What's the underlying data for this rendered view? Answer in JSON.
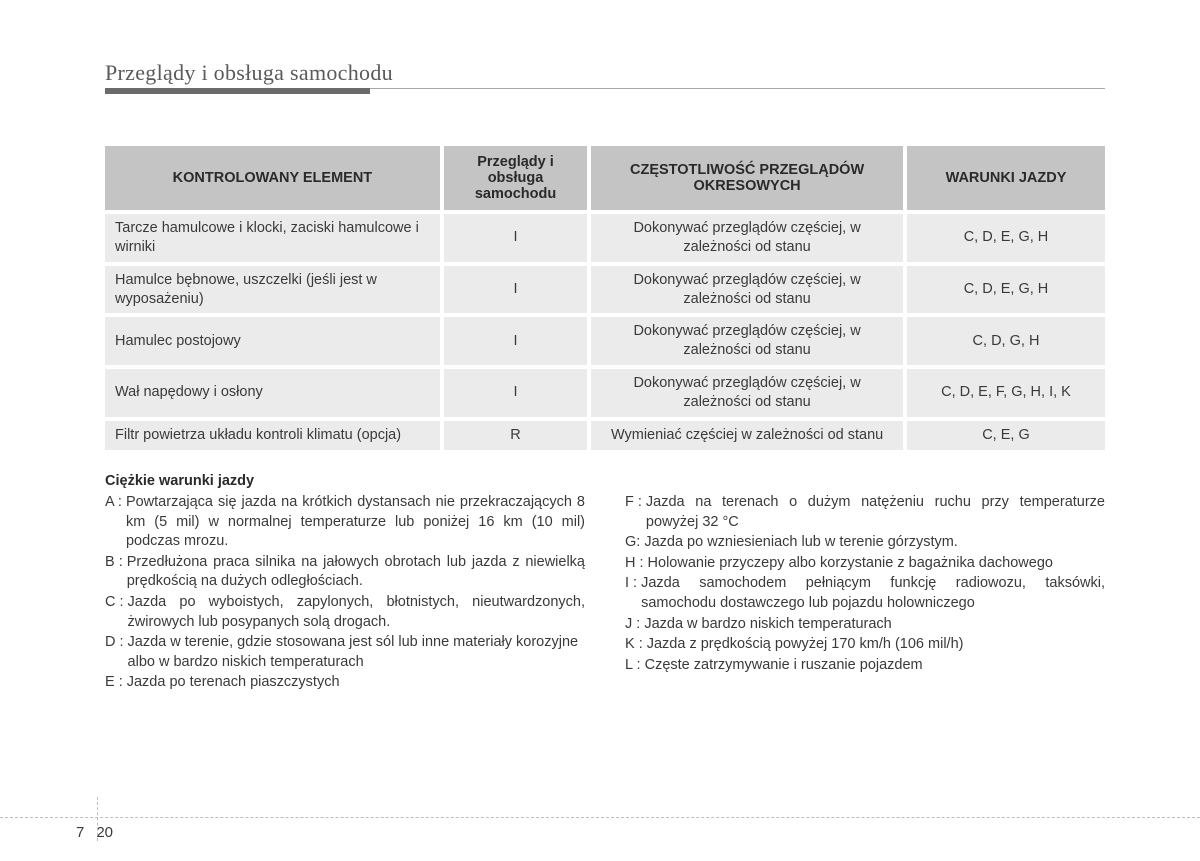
{
  "header": {
    "title": "Przeglądy i obsługa samochodu"
  },
  "table": {
    "headers": {
      "col1": "KONTROLOWANY ELEMENT",
      "col2": "Przeglądy i obsługa samochodu",
      "col3": "CZĘSTOTLIWOŚĆ PRZEGLĄDÓW OKRESOWYCH",
      "col4": "WARUNKI JAZDY"
    },
    "rows": [
      {
        "element": "Tarcze hamulcowe i klocki, zaciski hamulcowe i wirniki",
        "service": "I",
        "frequency": "Dokonywać przeglądów częściej, w zależności od stanu",
        "conditions": "C, D, E, G, H"
      },
      {
        "element": "Hamulce bębnowe, uszczelki (jeśli jest w wyposażeniu)",
        "service": "I",
        "frequency": "Dokonywać przeglądów częściej, w zależności od stanu",
        "conditions": "C, D, E, G, H"
      },
      {
        "element": "Hamulec postojowy",
        "service": "I",
        "frequency": "Dokonywać przeglądów częściej, w zależności od stanu",
        "conditions": "C, D, G, H"
      },
      {
        "element": "Wał napędowy i osłony",
        "service": "I",
        "frequency": "Dokonywać przeglądów częściej, w zależności od stanu",
        "conditions": "C, D, E, F, G, H, I, K"
      },
      {
        "element": "Filtr powietrza układu kontroli klimatu (opcja)",
        "service": "R",
        "frequency": "Wymieniać częściej w zależności od stanu",
        "conditions": "C, E, G"
      }
    ]
  },
  "conditions": {
    "title": "Ciężkie warunki jazdy",
    "left": [
      {
        "label": "A :",
        "text": "Powtarzająca się jazda na krótkich dystansach nie przekraczających 8 km (5 mil) w normalnej temperaturze lub poniżej 16 km (10 mil) podczas mrozu.",
        "justify": true
      },
      {
        "label": "B :",
        "text": "Przedłużona praca silnika na jałowych obrotach lub jazda z niewielką prędkością na dużych odległościach.",
        "justify": true
      },
      {
        "label": "C :",
        "text": "Jazda po wyboistych, zapylonych, błotnistych, nieutwardzonych, żwirowych lub posypanych solą drogach.",
        "justify": true
      },
      {
        "label": "D :",
        "text": "Jazda w terenie, gdzie stosowana jest sól lub inne materiały korozyjne albo w bardzo niskich temperaturach",
        "justify": false
      },
      {
        "label": "E :",
        "text": "Jazda po terenach piaszczystych",
        "justify": false
      }
    ],
    "right": [
      {
        "label": "F :",
        "text": "Jazda na terenach o dużym natężeniu ruchu przy temperaturze powyżej 32 °C",
        "justify": true
      },
      {
        "label": "G:",
        "text": "Jazda po wzniesieniach lub w terenie górzystym.",
        "justify": false
      },
      {
        "label": "H :",
        "text": "Holowanie przyczepy albo korzystanie z bagażnika dachowego",
        "justify": true
      },
      {
        "label": "I :",
        "text": "Jazda samochodem pełniącym funkcję radiowozu, taksówki, samochodu dostawczego lub pojazdu holowniczego",
        "justify": true
      },
      {
        "label": "J :",
        "text": "Jazda w bardzo niskich temperaturach",
        "justify": false
      },
      {
        "label": "K :",
        "text": "Jazda z prędkością powyżej 170 km/h (106 mil/h)",
        "justify": false
      },
      {
        "label": "L :",
        "text": "Częste zatrzymywanie i ruszanie pojazdem",
        "justify": false
      }
    ]
  },
  "footer": {
    "chapter": "7",
    "page": "20"
  }
}
